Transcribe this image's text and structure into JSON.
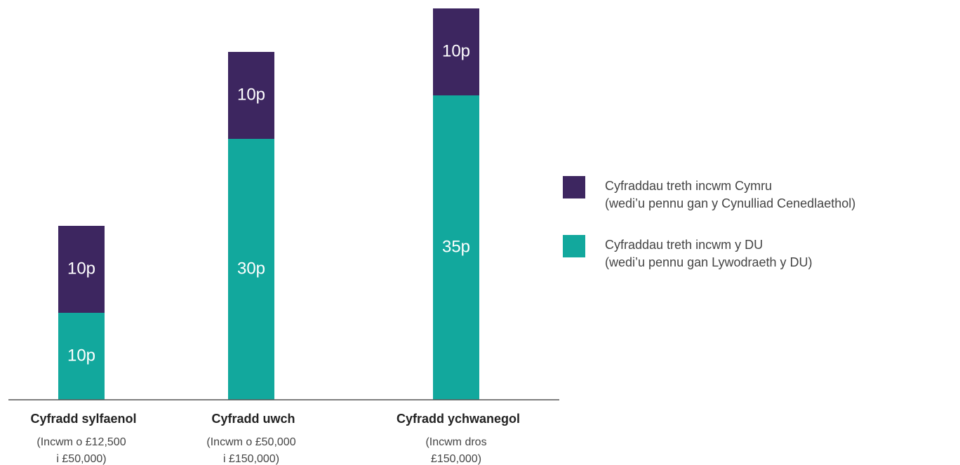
{
  "chart_data": {
    "type": "bar",
    "stacked": true,
    "categories": [
      "Cyfradd sylfaenol",
      "Cyfradd uwch",
      "Cyfradd ychwanegol"
    ],
    "category_notes": [
      [
        "(Incwm o £12,500",
        "i £50,000)"
      ],
      [
        "(Incwm o £50,000",
        "i £150,000)"
      ],
      [
        "(Incwm dros",
        "£150,000)"
      ]
    ],
    "series": [
      {
        "name": "Cyfraddau treth incwm y DU",
        "note": "(wedi’u pennu gan Lywodraeth y DU)",
        "color": "#12a89d",
        "values": [
          10,
          30,
          35
        ],
        "value_labels": [
          "10p",
          "30p",
          "35p"
        ]
      },
      {
        "name": "Cyfraddau treth incwm Cymru",
        "note": "(wedi’u pennu gan y Cynulliad Cenedlaethol)",
        "color": "#3d2660",
        "values": [
          10,
          10,
          10
        ],
        "value_labels": [
          "10p",
          "10p",
          "10p"
        ]
      }
    ],
    "legend": "right"
  }
}
